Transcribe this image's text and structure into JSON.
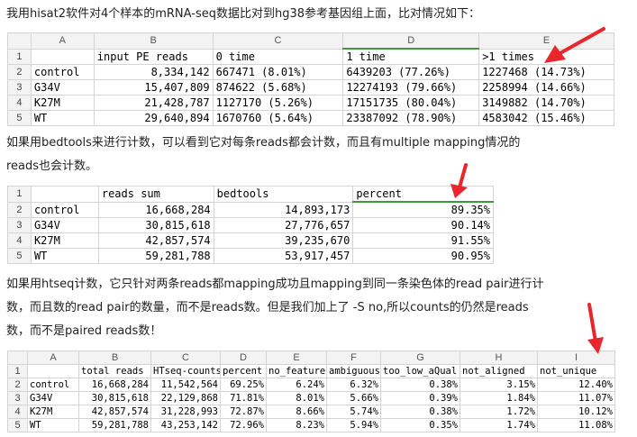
{
  "paragraph1": "我用hisat2软件对4个样本的mRNA-seq数据比对到hg38参考基因组上面，比对情况如下：",
  "table1": {
    "col_letters": [
      "A",
      "B",
      "C",
      "D",
      "E"
    ],
    "rows": [
      [
        "",
        "input PE reads",
        " 0 time",
        "1 time",
        ">1 times"
      ],
      [
        "control",
        "8,334,142",
        "667471 (8.01%)",
        "6439203 (77.26%)",
        "1227468 (14.73%)"
      ],
      [
        "G34V",
        "15,407,809",
        "874622 (5.68%)",
        "12274193 (79.66%)",
        "2258994 (14.66%)"
      ],
      [
        "K27M",
        "21,428,787",
        " 1127170 (5.26%)",
        "17151735 (80.04%)",
        "3149882 (14.70%)"
      ],
      [
        "WT",
        "29,640,894",
        "1670760 (5.64%)",
        "23387092 (78.90%)",
        "4583042 (15.46%)"
      ]
    ]
  },
  "paragraph2_line1": "如果用bedtools来进行计数，可以看到它对每条reads都会计数，而且有multiple mapping情况的",
  "paragraph2_line2": "reads也会计数。",
  "table2": {
    "rows": [
      [
        "",
        "reads sum",
        "bedtools",
        "percent"
      ],
      [
        "control",
        "16,668,284",
        "14,893,173",
        "89.35%"
      ],
      [
        "G34V",
        "30,815,618",
        "27,776,657",
        "90.14%"
      ],
      [
        "K27M",
        "42,857,574",
        "39,235,670",
        "91.55%"
      ],
      [
        "WT",
        "59,281,788",
        "53,917,457",
        "90.95%"
      ]
    ]
  },
  "paragraph3_line1": "如果用htseq计数，它只针对两条reads都mapping成功且mapping到同一条染色体的read pair进行计",
  "paragraph3_line2": "数，而且数的read pair的数量，而不是reads数。但是我们加上了 -S no,所以counts的仍然是reads",
  "paragraph3_line3": "数，而不是paired reads数！",
  "table3": {
    "col_letters": [
      "A",
      "B",
      "C",
      "D",
      "E",
      "F",
      "G",
      "H",
      "I"
    ],
    "rows": [
      [
        "",
        "total reads",
        "HTseq-counts",
        "percent",
        "no_feature",
        "ambiguous",
        "too_low_aQual",
        "not_aligned",
        "not_unique"
      ],
      [
        "control",
        "16,668,284",
        "11,542,564",
        "69.25%",
        "6.24%",
        "6.32%",
        "0.38%",
        "3.15%",
        "12.40%"
      ],
      [
        "G34V",
        "30,815,618",
        "22,129,868",
        "71.81%",
        "8.01%",
        "5.66%",
        "0.39%",
        "1.84%",
        "11.07%"
      ],
      [
        "K27M",
        "42,857,574",
        "31,228,993",
        "72.87%",
        "8.66%",
        "5.74%",
        "0.38%",
        "1.72%",
        "10.12%"
      ],
      [
        "WT",
        "59,281,788",
        "43,253,142",
        "72.96%",
        "8.23%",
        "5.94%",
        "0.35%",
        "1.74%",
        "11.08%"
      ]
    ]
  },
  "colors": {
    "arrow": "#e8262b",
    "selection": "#3c9a3c"
  }
}
